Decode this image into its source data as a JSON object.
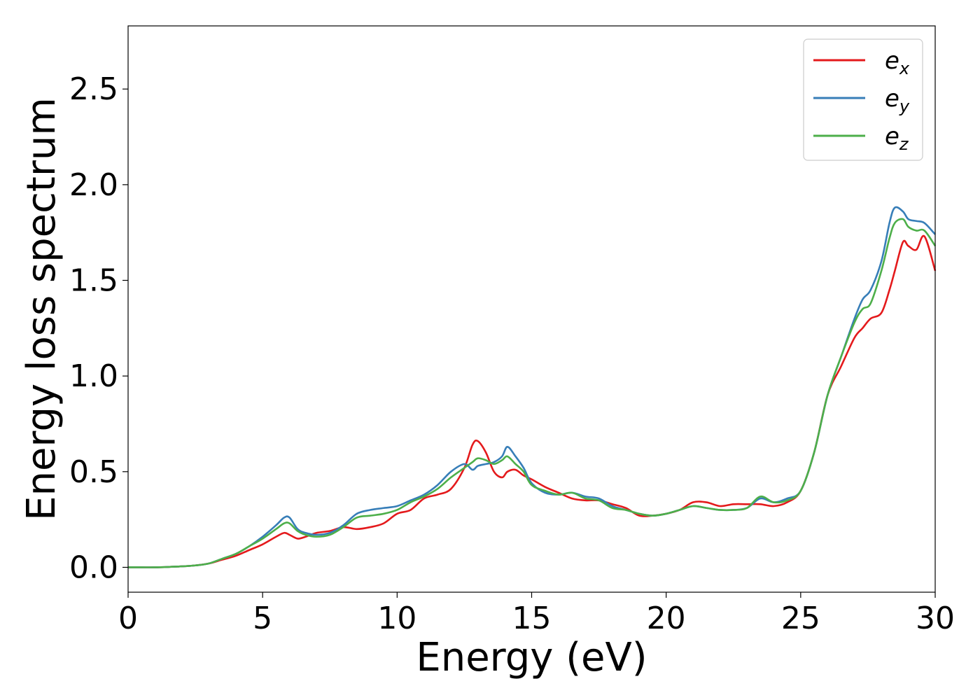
{
  "chart_data": {
    "type": "line",
    "xlabel": "Energy (eV)",
    "ylabel": "Energy loss spectrum",
    "xlim": [
      0,
      30
    ],
    "ylim": [
      -0.13,
      2.83
    ],
    "xticks": [
      "0",
      "5",
      "10",
      "15",
      "20",
      "25",
      "30"
    ],
    "yticks": [
      "0.0",
      "0.5",
      "1.0",
      "1.5",
      "2.0",
      "2.5"
    ],
    "grid": false,
    "legend_position": "top-right",
    "x": [
      0,
      0.5,
      1,
      1.5,
      2,
      2.5,
      3,
      3.5,
      4,
      4.5,
      5,
      5.5,
      5.8,
      6,
      6.3,
      6.6,
      7,
      7.5,
      8,
      8.5,
      9,
      9.5,
      10,
      10.5,
      11,
      11.5,
      12,
      12.5,
      12.8,
      13,
      13.3,
      13.6,
      13.9,
      14.1,
      14.4,
      14.7,
      15,
      15.5,
      16,
      16.5,
      17,
      17.5,
      18,
      18.5,
      19,
      19.5,
      20,
      20.5,
      21,
      21.5,
      22,
      22.5,
      23,
      23.5,
      24,
      24.5,
      25,
      25.5,
      26,
      26.5,
      27,
      27.3,
      27.6,
      28,
      28.3,
      28.5,
      28.8,
      29,
      29.3,
      29.6,
      30
    ],
    "series": [
      {
        "name": "e",
        "subscript": "x",
        "color": "#e41a1c",
        "values": [
          0,
          0,
          0,
          0.002,
          0.005,
          0.01,
          0.02,
          0.04,
          0.06,
          0.09,
          0.12,
          0.16,
          0.18,
          0.17,
          0.15,
          0.16,
          0.18,
          0.19,
          0.21,
          0.2,
          0.21,
          0.23,
          0.28,
          0.3,
          0.36,
          0.38,
          0.41,
          0.52,
          0.64,
          0.66,
          0.6,
          0.5,
          0.47,
          0.5,
          0.51,
          0.48,
          0.46,
          0.42,
          0.39,
          0.36,
          0.35,
          0.35,
          0.33,
          0.31,
          0.27,
          0.27,
          0.28,
          0.3,
          0.34,
          0.34,
          0.32,
          0.33,
          0.33,
          0.33,
          0.32,
          0.34,
          0.4,
          0.6,
          0.9,
          1.05,
          1.2,
          1.25,
          1.3,
          1.33,
          1.45,
          1.55,
          1.7,
          1.68,
          1.66,
          1.73,
          1.55
        ]
      },
      {
        "name": "e",
        "subscript": "y",
        "color": "#377eb8",
        "values": [
          0,
          0,
          0,
          0.002,
          0.005,
          0.01,
          0.02,
          0.045,
          0.07,
          0.11,
          0.16,
          0.22,
          0.26,
          0.26,
          0.2,
          0.18,
          0.17,
          0.18,
          0.22,
          0.28,
          0.3,
          0.31,
          0.32,
          0.35,
          0.38,
          0.43,
          0.5,
          0.54,
          0.51,
          0.53,
          0.54,
          0.55,
          0.58,
          0.63,
          0.58,
          0.52,
          0.44,
          0.39,
          0.38,
          0.39,
          0.37,
          0.36,
          0.32,
          0.3,
          0.28,
          0.27,
          0.28,
          0.3,
          0.32,
          0.31,
          0.3,
          0.3,
          0.31,
          0.36,
          0.34,
          0.36,
          0.4,
          0.6,
          0.9,
          1.1,
          1.3,
          1.4,
          1.45,
          1.6,
          1.8,
          1.88,
          1.86,
          1.82,
          1.81,
          1.8,
          1.74
        ]
      },
      {
        "name": "e",
        "subscript": "z",
        "color": "#4daf4a",
        "values": [
          0,
          0,
          0,
          0.002,
          0.005,
          0.01,
          0.02,
          0.045,
          0.07,
          0.11,
          0.15,
          0.2,
          0.23,
          0.23,
          0.19,
          0.17,
          0.16,
          0.17,
          0.21,
          0.26,
          0.27,
          0.28,
          0.3,
          0.34,
          0.37,
          0.41,
          0.47,
          0.52,
          0.55,
          0.57,
          0.56,
          0.54,
          0.56,
          0.58,
          0.54,
          0.5,
          0.43,
          0.4,
          0.38,
          0.39,
          0.36,
          0.35,
          0.31,
          0.3,
          0.28,
          0.27,
          0.28,
          0.3,
          0.32,
          0.31,
          0.3,
          0.3,
          0.31,
          0.37,
          0.34,
          0.35,
          0.4,
          0.6,
          0.9,
          1.1,
          1.28,
          1.35,
          1.38,
          1.55,
          1.72,
          1.8,
          1.82,
          1.78,
          1.76,
          1.76,
          1.68
        ]
      }
    ]
  }
}
